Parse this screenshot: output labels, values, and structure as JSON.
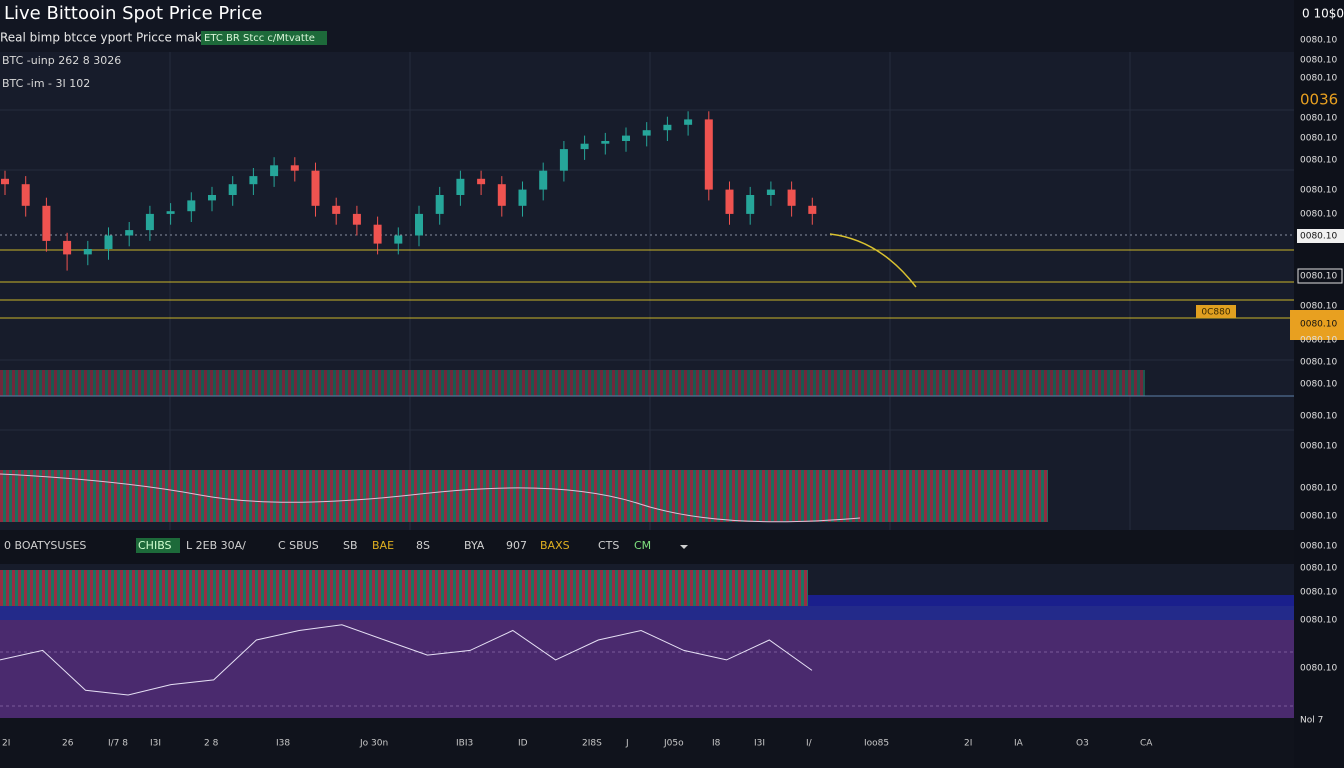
{
  "header": {
    "title": "Live Bittooin Spot Price Price",
    "subtitle": "Real bimp btcce yport Pricce maket!",
    "badge": "ETC BR Stcc c/Mtvatte",
    "info": [
      "BTC -uinp 262 8 3026",
      "BTC -im - 3I 102"
    ],
    "corner": "0 10$0"
  },
  "price_tag": "0C880",
  "right_axis_labels": [
    "0080.10",
    "0080.10",
    "0080.10",
    "0036",
    "0080.10",
    "0080.10",
    "0080.10",
    "0080.10",
    "0080.10",
    "0080.10",
    "0080.10",
    "0080.10",
    "0080.10",
    "0080.10",
    "0080.10",
    "0080.10",
    "0080.10",
    "0080.10",
    "0080.10",
    "0080.10",
    "0080.10",
    "0080.10",
    "0080.10",
    "0080.10",
    "0080.10",
    "Nol 7"
  ],
  "toolbar": [
    "0 BOATYSUSES",
    "CHIBS",
    "L 2EB 30A/",
    "C SBUS",
    "SB",
    "BAE",
    "8S",
    "BYA",
    "907",
    "BAXS",
    "CTS",
    "CM"
  ],
  "time_axis_labels": [
    "2I",
    "26",
    "I/7 8",
    "I3I",
    "2 8",
    "I38",
    "Jo 30n",
    "IBI3",
    "ID",
    "2I8S",
    "J",
    "J05o",
    "I8",
    "I3I",
    "I/",
    "Ioo85",
    "2I",
    "IA",
    "O3",
    "CA"
  ],
  "chart_data": [
    {
      "type": "candlestick",
      "up_color": "#26a69a",
      "down_color": "#ef5350",
      "ylim": [
        0,
        100
      ],
      "open": [
        56,
        54,
        46,
        33,
        28,
        30,
        35,
        37,
        43,
        44,
        48,
        50,
        54,
        57,
        61,
        59,
        46,
        43,
        39,
        32,
        35,
        43,
        50,
        56,
        54,
        46,
        52,
        59,
        67,
        69,
        70,
        72,
        74,
        76,
        78,
        52,
        43,
        50,
        52,
        46
      ],
      "high": [
        59,
        57,
        49,
        36,
        33,
        38,
        40,
        46,
        47,
        51,
        53,
        57,
        60,
        64,
        64,
        62,
        49,
        46,
        42,
        38,
        46,
        53,
        59,
        59,
        57,
        55,
        62,
        70,
        72,
        73,
        75,
        77,
        79,
        81,
        81,
        55,
        53,
        55,
        55,
        49
      ],
      "low": [
        50,
        42,
        29,
        22,
        24,
        26,
        31,
        33,
        39,
        40,
        44,
        46,
        50,
        53,
        55,
        42,
        39,
        35,
        28,
        28,
        31,
        39,
        46,
        50,
        42,
        42,
        48,
        55,
        63,
        65,
        66,
        68,
        70,
        72,
        48,
        39,
        39,
        46,
        42,
        39
      ],
      "close": [
        54,
        46,
        33,
        28,
        30,
        35,
        37,
        43,
        44,
        48,
        50,
        54,
        57,
        61,
        59,
        46,
        43,
        39,
        32,
        35,
        43,
        50,
        56,
        54,
        46,
        52,
        59,
        67,
        69,
        70,
        72,
        74,
        76,
        78,
        52,
        43,
        50,
        52,
        46,
        43
      ]
    },
    {
      "type": "line",
      "color": "#e6e0f5",
      "ylim": [
        0,
        100
      ],
      "values": [
        58,
        68,
        26,
        21,
        32,
        37,
        79,
        89,
        95,
        79,
        63,
        68,
        89,
        58,
        79,
        89,
        68,
        58,
        79,
        47
      ]
    }
  ]
}
